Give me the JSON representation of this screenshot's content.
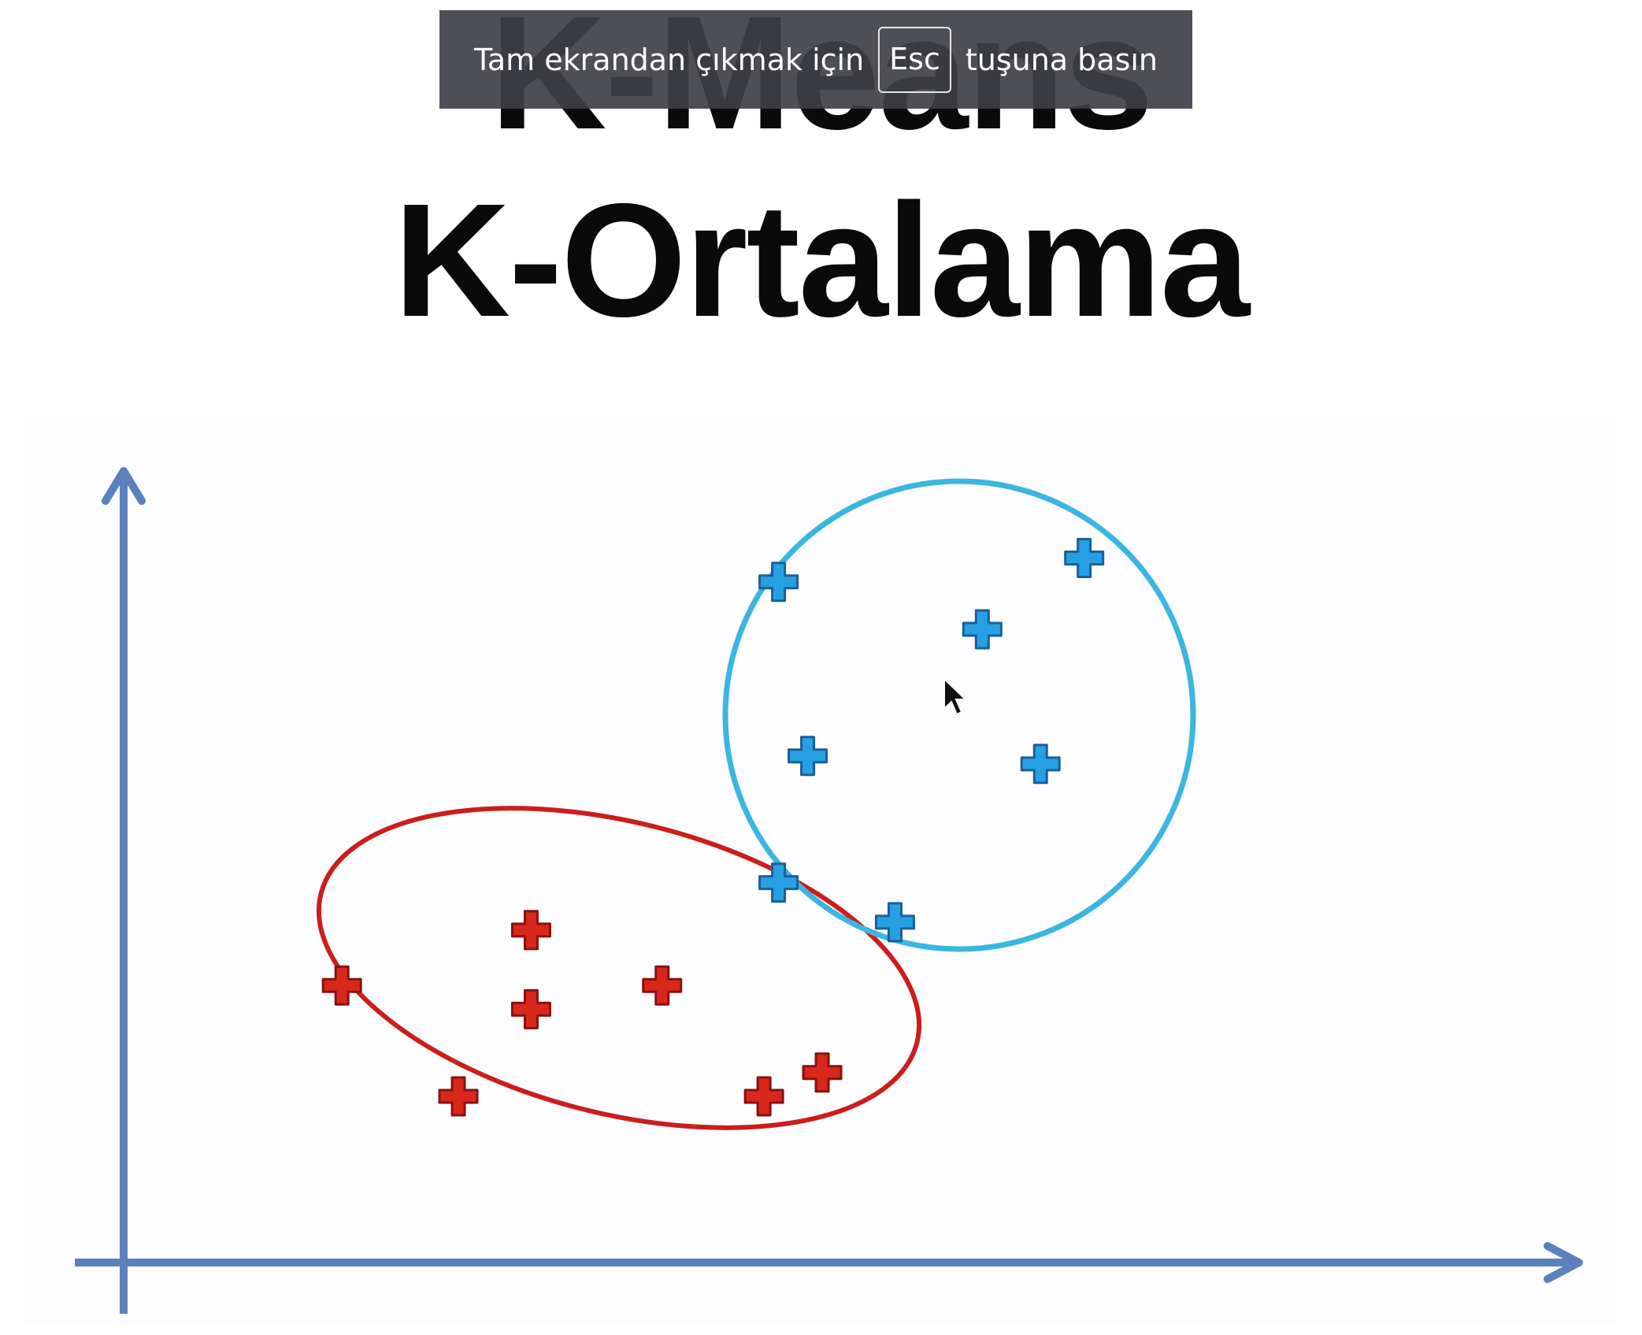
{
  "fullscreen_toast": {
    "before": "Tam ekrandan çıkmak için",
    "key": "Esc",
    "after": "tuşuna basın"
  },
  "slide": {
    "title_en": "K-Means",
    "title_tr": "K-Ortalama"
  },
  "colors": {
    "axis": "#5b80bd",
    "cluster_red": "#cc1d1d",
    "cluster_blue": "#3ab6e0",
    "point_red": "#d8281c",
    "point_blue": "#27a0e3"
  },
  "icons": [
    "cursor-arrow-icon"
  ],
  "chart_data": {
    "type": "scatter",
    "title": "",
    "xlabel": "",
    "ylabel": "",
    "grid": false,
    "xlim": [
      0,
      100
    ],
    "ylim": [
      0,
      100
    ],
    "series": [
      {
        "points": [
          [
            15,
            35
          ],
          [
            28,
            42
          ],
          [
            28,
            32
          ],
          [
            23,
            21
          ],
          [
            37,
            35
          ],
          [
            44,
            21
          ],
          [
            48,
            24
          ]
        ]
      },
      {
        "points": [
          [
            45,
            86
          ],
          [
            59,
            80
          ],
          [
            66,
            89
          ],
          [
            47,
            64
          ],
          [
            63,
            63
          ],
          [
            45,
            48
          ],
          [
            53,
            43
          ]
        ]
      }
    ]
  }
}
